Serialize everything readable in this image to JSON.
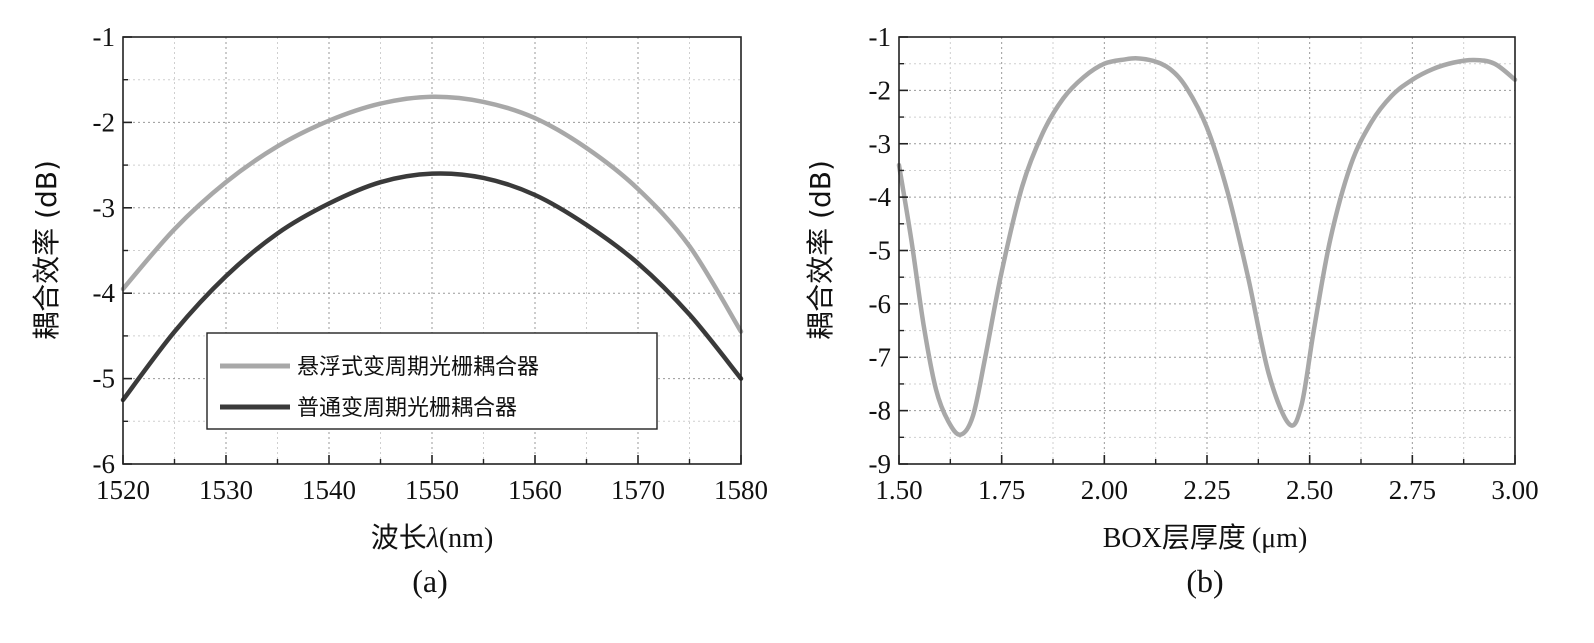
{
  "chart_data": [
    {
      "panel": "(a)",
      "type": "line",
      "xlabel_main": "波长",
      "xlabel_symbol": "λ",
      "xlabel_unit": "(nm)",
      "ylabel": "耦合效率 (dB)",
      "xlim": [
        1520,
        1580
      ],
      "ylim": [
        -6,
        -1
      ],
      "xticks": [
        1520,
        1530,
        1540,
        1550,
        1560,
        1570,
        1580
      ],
      "yticks": [
        -1,
        -2,
        -3,
        -4,
        -5,
        -6
      ],
      "grid": true,
      "legend_position": "lower-center",
      "colors": {
        "suspended": "#a8a8a8",
        "normal": "#3a3a3a"
      },
      "series": [
        {
          "name": "悬浮式变周期光栅耦合器",
          "x": [
            1520,
            1525,
            1530,
            1535,
            1540,
            1545,
            1550,
            1555,
            1560,
            1565,
            1570,
            1575,
            1580
          ],
          "y": [
            -3.95,
            -3.25,
            -2.7,
            -2.28,
            -1.98,
            -1.78,
            -1.7,
            -1.76,
            -1.95,
            -2.3,
            -2.78,
            -3.45,
            -4.45
          ]
        },
        {
          "name": "普通变周期光栅耦合器",
          "x": [
            1520,
            1525,
            1530,
            1535,
            1540,
            1545,
            1550,
            1555,
            1560,
            1565,
            1570,
            1575,
            1580
          ],
          "y": [
            -5.25,
            -4.45,
            -3.8,
            -3.3,
            -2.95,
            -2.7,
            -2.6,
            -2.65,
            -2.85,
            -3.2,
            -3.65,
            -4.25,
            -5.0
          ]
        }
      ]
    },
    {
      "panel": "(b)",
      "type": "line",
      "xlabel_main": "BOX层厚度",
      "xlabel_unit": "(μm)",
      "ylabel": "耦合效率 (dB)",
      "xlim": [
        1.5,
        3.0
      ],
      "ylim": [
        -9,
        -1
      ],
      "xticks": [
        "1.50",
        "1.75",
        "2.00",
        "2.25",
        "2.50",
        "2.75",
        "3.00"
      ],
      "yticks": [
        -1,
        -2,
        -3,
        -4,
        -5,
        -6,
        -7,
        -8,
        -9
      ],
      "grid": true,
      "colors": {
        "line": "#a8a8a8"
      },
      "series": [
        {
          "x": [
            1.5,
            1.53,
            1.56,
            1.59,
            1.62,
            1.65,
            1.68,
            1.71,
            1.75,
            1.8,
            1.85,
            1.9,
            1.95,
            2.0,
            2.05,
            2.08,
            2.12,
            2.16,
            2.2,
            2.25,
            2.3,
            2.35,
            2.4,
            2.45,
            2.48,
            2.51,
            2.55,
            2.6,
            2.65,
            2.7,
            2.75,
            2.8,
            2.85,
            2.9,
            2.95,
            3.0
          ],
          "y": [
            -3.4,
            -4.8,
            -6.4,
            -7.6,
            -8.2,
            -8.45,
            -8.1,
            -7.0,
            -5.4,
            -3.8,
            -2.8,
            -2.15,
            -1.75,
            -1.5,
            -1.42,
            -1.4,
            -1.45,
            -1.6,
            -1.95,
            -2.7,
            -3.9,
            -5.5,
            -7.3,
            -8.25,
            -7.9,
            -6.5,
            -4.8,
            -3.4,
            -2.6,
            -2.1,
            -1.8,
            -1.6,
            -1.48,
            -1.43,
            -1.5,
            -1.8
          ]
        }
      ]
    }
  ]
}
